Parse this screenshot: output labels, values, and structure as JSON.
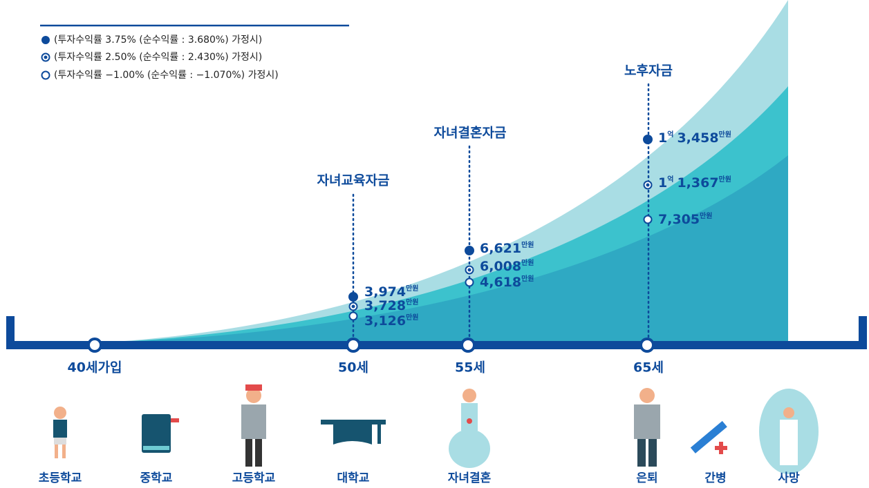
{
  "legend": [
    "(투자수익률 3.75% (순수익률 : 3.680%) 가정시)",
    "(투자수익률 2.50% (순수익률 : 2.430%) 가정시)",
    "(투자수익률 −1.00% (순수익률 : −1.070%) 가정시)"
  ],
  "start": "40세가입",
  "milestones": [
    {
      "title": "자녀교육자금",
      "age": "50세",
      "amounts": [
        {
          "main": "3,974",
          "unit": "만원"
        },
        {
          "main": "3,728",
          "unit": "만원"
        },
        {
          "main": "3,126",
          "unit": "만원"
        }
      ]
    },
    {
      "title": "자녀결혼자금",
      "age": "55세",
      "amounts": [
        {
          "main": "6,621",
          "unit": "만원"
        },
        {
          "main": "6,008",
          "unit": "만원"
        },
        {
          "main": "4,618",
          "unit": "만원"
        }
      ]
    },
    {
      "title": "노후자금",
      "age": "65세",
      "amounts": [
        {
          "prefix": "1",
          "prefix_unit": "억",
          "main": "3,458",
          "unit": "만원"
        },
        {
          "prefix": "1",
          "prefix_unit": "억",
          "main": "1,367",
          "unit": "만원"
        },
        {
          "main": "7,305",
          "unit": "만원"
        }
      ]
    }
  ],
  "life_events": [
    "초등학교",
    "중학교",
    "고등학교",
    "대학교",
    "자녀결혼",
    "은퇴",
    "간병",
    "사망"
  ]
}
